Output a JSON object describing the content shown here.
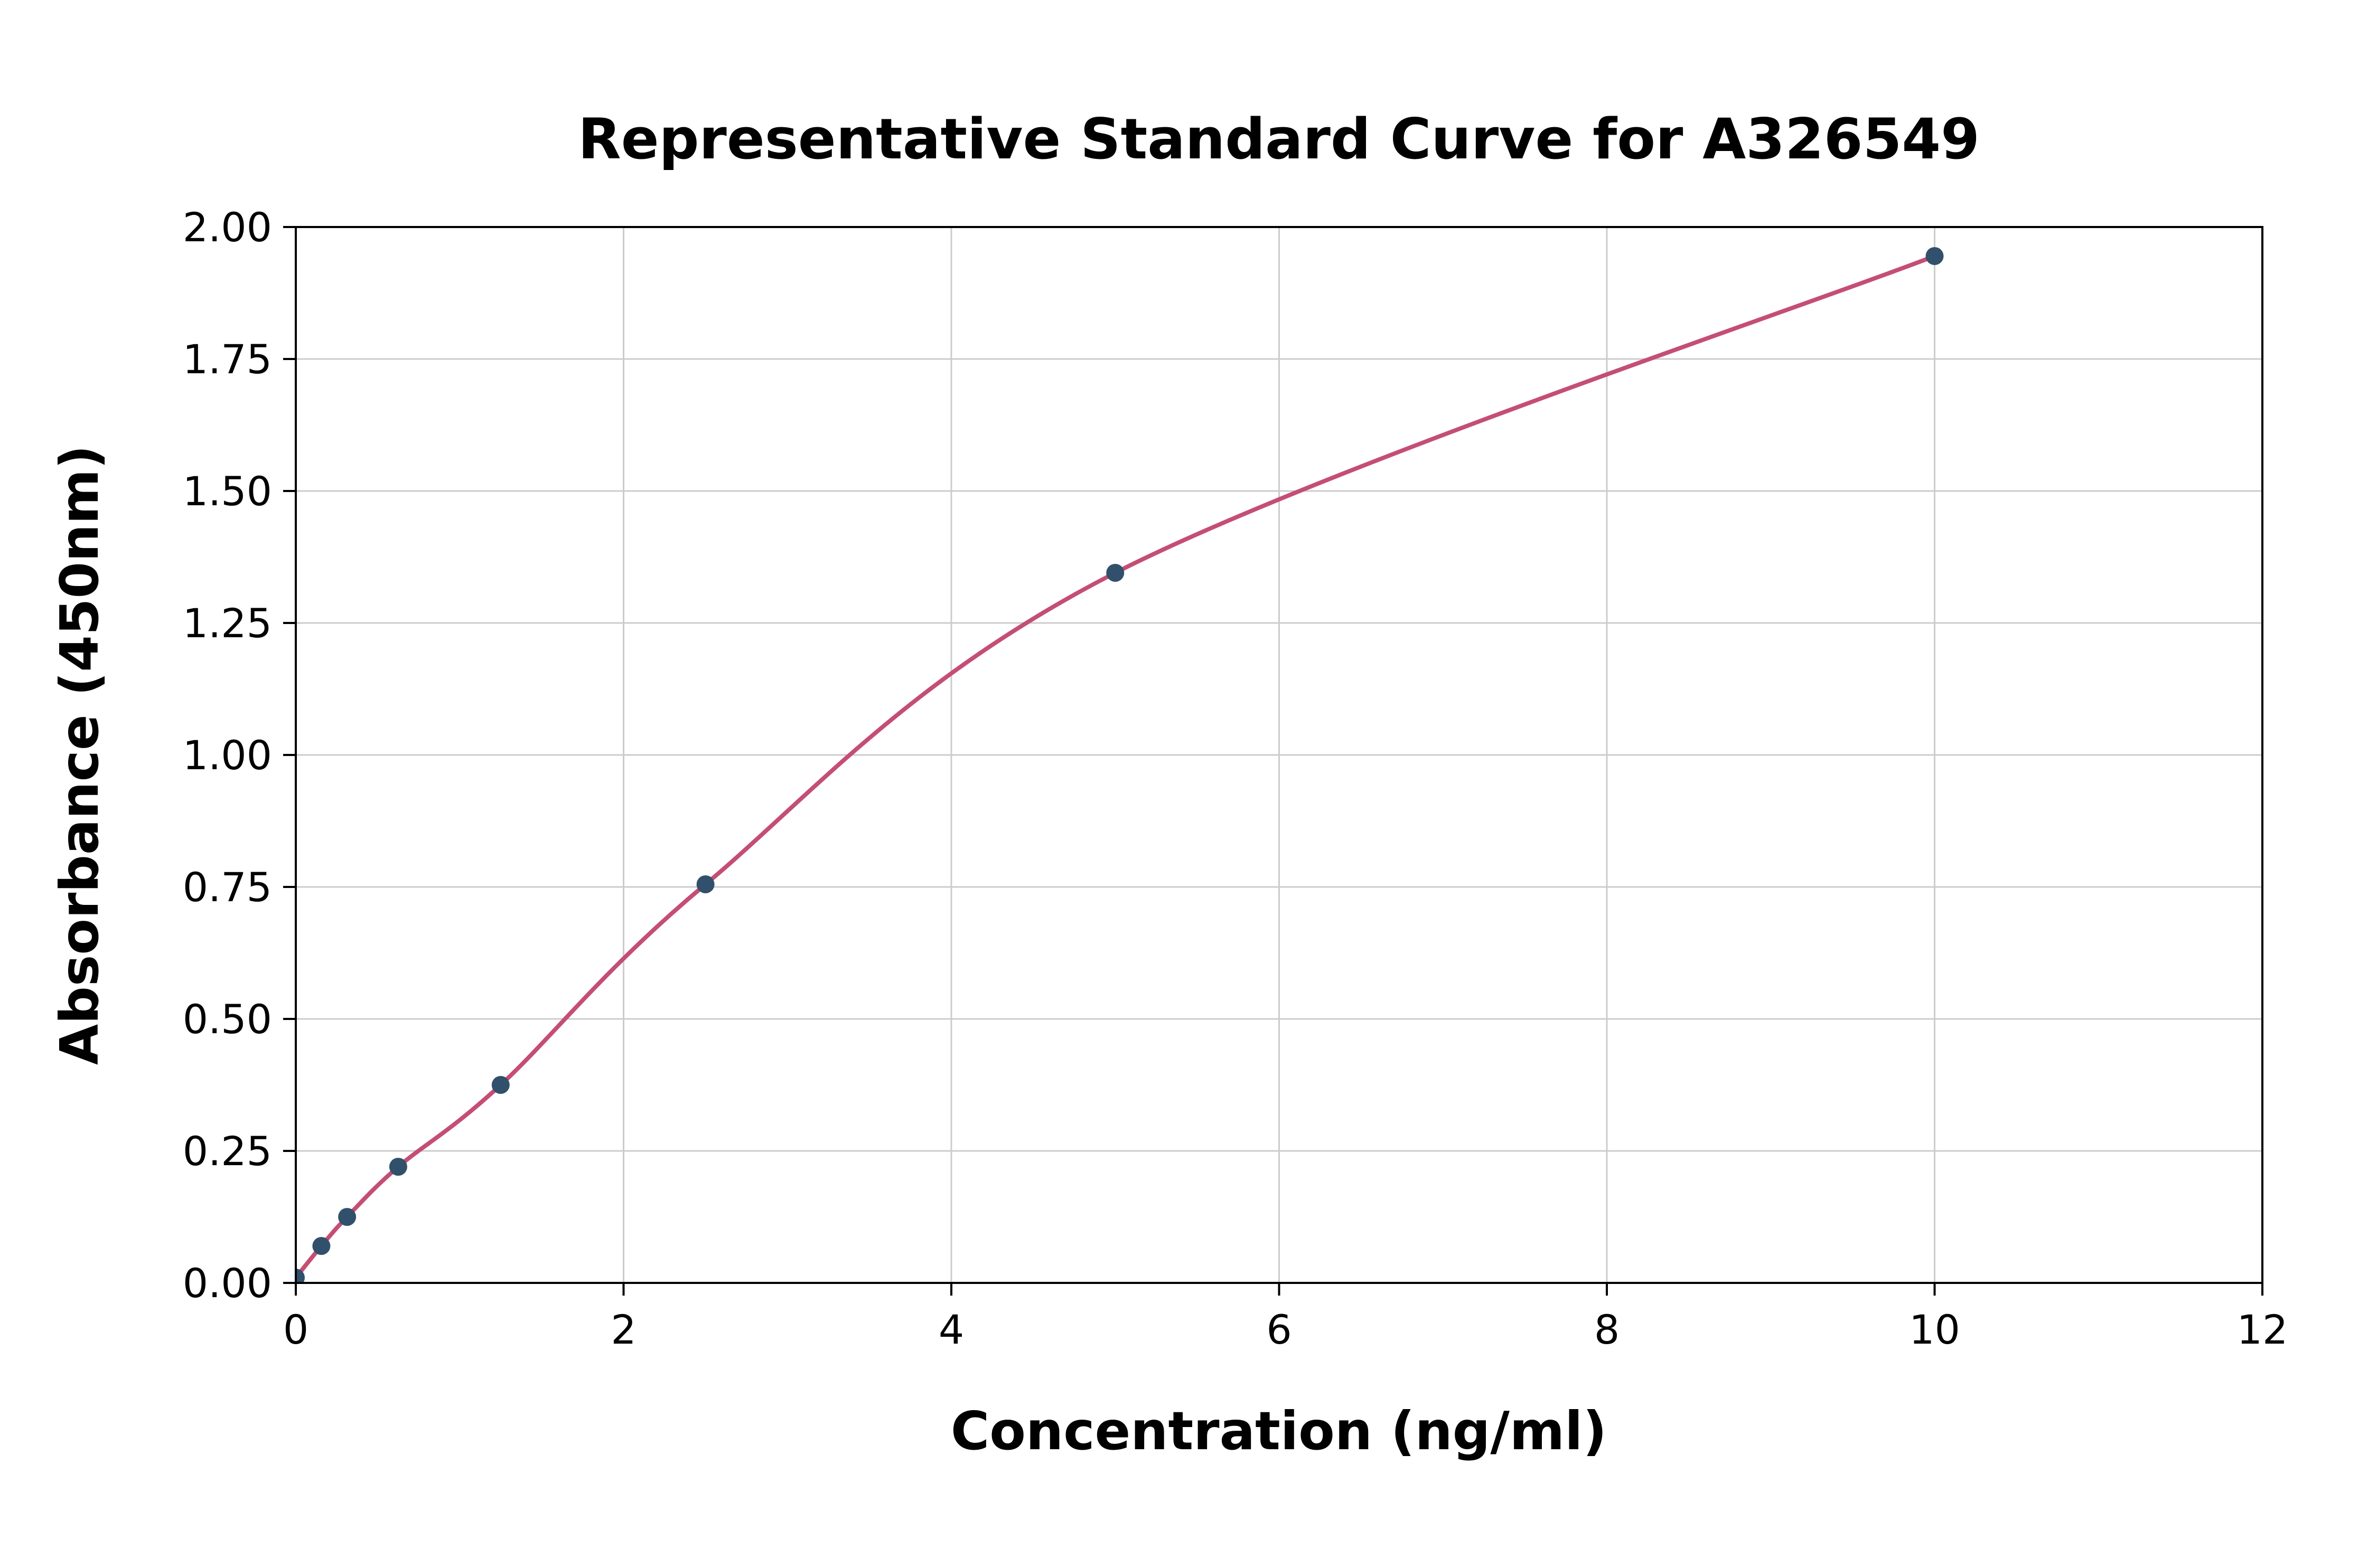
{
  "chart_data": {
    "type": "scatter",
    "title": "Representative Standard Curve for A326549",
    "xlabel": "Concentration (ng/ml)",
    "ylabel": "Absorbance (450nm)",
    "xlim": [
      0,
      12
    ],
    "ylim": [
      0,
      2.0
    ],
    "x_ticks": [
      "0",
      "2",
      "4",
      "6",
      "8",
      "10",
      "12"
    ],
    "y_ticks": [
      "0.00",
      "0.25",
      "0.50",
      "0.75",
      "1.00",
      "1.25",
      "1.50",
      "1.75",
      "2.00"
    ],
    "grid": true,
    "legend": "none",
    "x": [
      0,
      0.156,
      0.313,
      0.625,
      1.25,
      2.5,
      5,
      10
    ],
    "y": [
      0.01,
      0.07,
      0.125,
      0.22,
      0.375,
      0.755,
      1.345,
      1.945
    ],
    "marker_color": "#31506c",
    "line_color": "#c44e74",
    "grid_color": "#cccccc",
    "axis_color": "#000000",
    "background_color": "#ffffff"
  }
}
